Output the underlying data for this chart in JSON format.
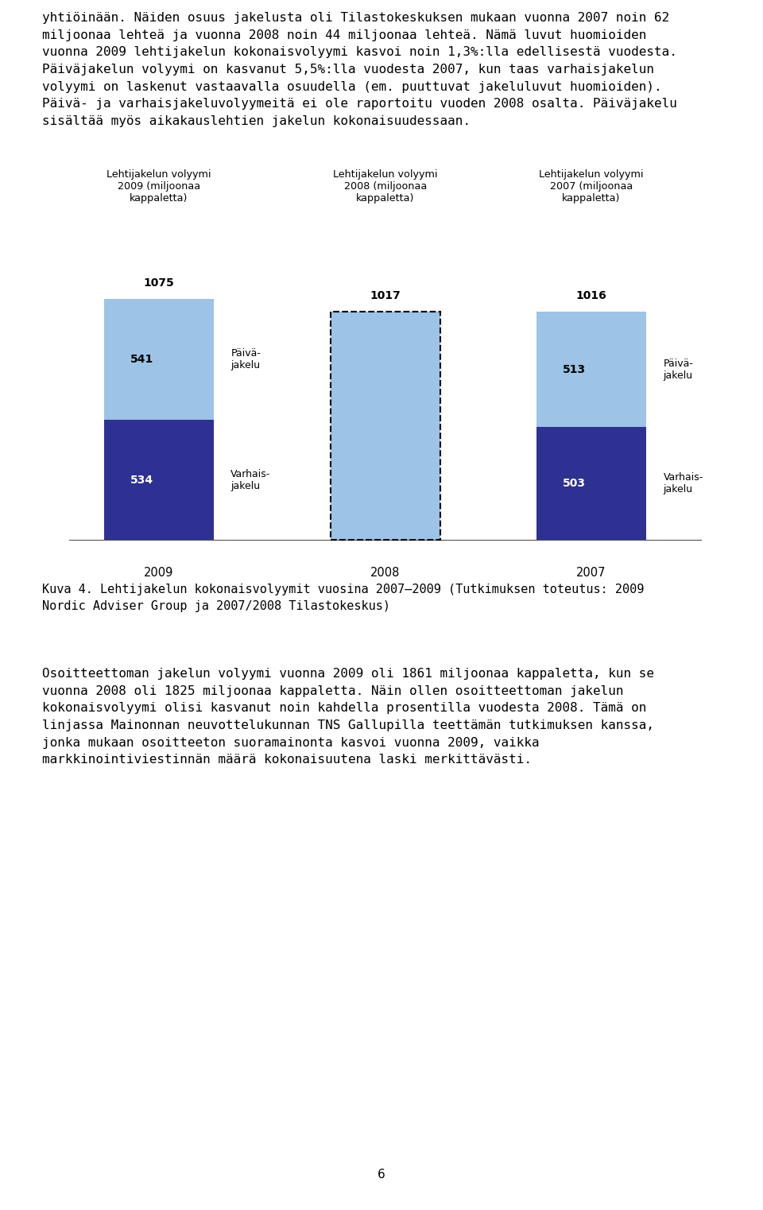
{
  "intro_text": "yhtiöinään. Näiden osuus jakelusta oli Tilastokeskuksen mukaan vuonna 2007 noin 62\nmiljoonaa lehteä ja vuonna 2008 noin 44 miljoonaa lehteä. Nämä luvut huomioiden\nvuonna 2009 lehtijakelun kokonaisvolyymi kasvoi noin 1,3%:lla edellisestä vuodesta.\nPäiväjakelun volyymi on kasvanut 5,5%:lla vuodesta 2007, kun taas varhaisjakelun\nvolyymi on laskenut vastaavalla osuudella (em. puuttuvat jakeluluvut huomioiden).\nPäivä- ja varhaisjakeluvolyymeitä ei ole raportoitu vuoden 2008 osalta. Päiväjakelu\nsisältää myös aikakauslehtien jakelun kokonaisuudessaan.",
  "years": [
    "2009",
    "2008",
    "2007"
  ],
  "col_titles": [
    "Lehtijakelun volyymi\n2009 (miljoonaa\nkappaletta)",
    "Lehtijakelun volyymi\n2008 (miljoonaa\nkappaletta)",
    "Lehtijakelun volyymi\n2007 (miljoonaa\nkappaletta)"
  ],
  "paiva_values": [
    541,
    null,
    513
  ],
  "varhais_values": [
    534,
    null,
    503
  ],
  "total_values": [
    1075,
    1017,
    1016
  ],
  "paiva_color": "#9DC3E6",
  "varhais_color": "#2E3192",
  "caption": "Kuva 4. Lehtijakelun kokonaisvolyymit vuosina 2007–2009 (Tutkimuksen toteutus: 2009\nNordic Adviser Group ja 2007/2008 Tilastokeskus)",
  "footer_text": "Osoitteettoman jakelun volyymi vuonna 2009 oli 1861 miljoonaa kappaletta, kun se\nvuonna 2008 oli 1825 miljoonaa kappaletta. Näin ollen osoitteettoman jakelun\nkokonaisvolyymi olisi kasvanut noin kahdella prosentilla vuodesta 2008. Tämä on\nlinjassa Mainonnan neuvottelukunnan TNS Gallupilla teettämän tutkimuksen kanssa,\njonka mukaan osoitteeton suoramainonta kasvoi vuonna 2009, vaikka\nmarkkinointiviestinnän määrä kokonaisuutena laski merkittävästi.",
  "page_number": "6"
}
